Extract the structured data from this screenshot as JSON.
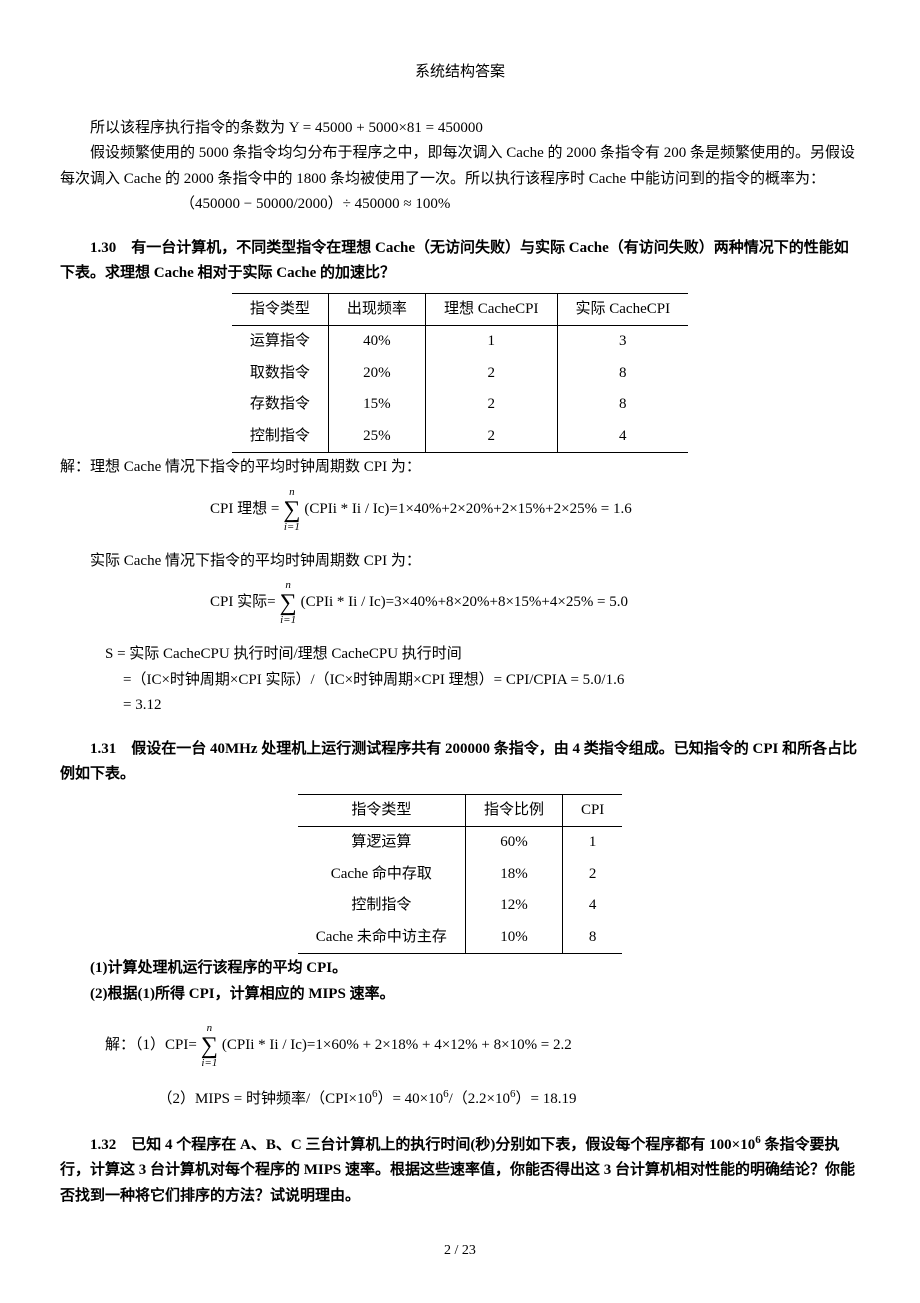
{
  "doc_title": "系统结构答案",
  "intro": {
    "line1": "所以该程序执行指令的条数为 Y = 45000 + 5000×81 = 450000",
    "line2": "假设频繁使用的 5000 条指令均匀分布于程序之中，即每次调入 Cache 的 2000 条指令有 200 条是频繁使用的。另假设每次调入 Cache 的 2000 条指令中的 1800 条均被使用了一次。所以执行该程序时 Cache 中能访问到的指令的概率为：",
    "line3": "（450000 − 50000/2000）÷ 450000 ≈ 100%"
  },
  "q130": {
    "question": "1.30　有一台计算机，不同类型指令在理想 Cache（无访问失败）与实际 Cache（有访问失败）两种情况下的性能如下表。求理想 Cache 相对于实际 Cache 的加速比？",
    "table": {
      "headers": [
        "指令类型",
        "出现频率",
        "理想 CacheCPI",
        "实际 CacheCPI"
      ],
      "rows": [
        [
          "运算指令",
          "40%",
          "1",
          "3"
        ],
        [
          "取数指令",
          "20%",
          "2",
          "8"
        ],
        [
          "存数指令",
          "15%",
          "2",
          "8"
        ],
        [
          "控制指令",
          "25%",
          "2",
          "4"
        ]
      ]
    },
    "sol_intro": "解：理想 Cache 情况下指令的平均时钟周期数 CPI 为：",
    "f1_pre": "CPI 理想 = ",
    "f1_sum_top": "n",
    "f1_sum_bot": "i=1",
    "f1_rest": "(CPIi * Ii / Ic)=1×40%+2×20%+2×15%+2×25% = 1.6",
    "sol_mid": "实际 Cache 情况下指令的平均时钟周期数 CPI 为：",
    "f2_pre": "CPI 实际= ",
    "f2_rest": "(CPIi * Ii / Ic)=3×40%+8×20%+8×15%+4×25% = 5.0",
    "s_line1": "S = 实际 CacheCPU 执行时间/理想 CacheCPU 执行时间",
    "s_line2": "=（IC×时钟周期×CPI 实际）/（IC×时钟周期×CPI 理想）= CPI/CPIA = 5.0/1.6",
    "s_line3": "= 3.12"
  },
  "q131": {
    "question": "1.31　假设在一台 40MHz 处理机上运行测试程序共有 200000 条指令，由 4 类指令组成。已知指令的 CPI 和所各占比例如下表。",
    "table": {
      "headers": [
        "指令类型",
        "指令比例",
        "CPI"
      ],
      "rows": [
        [
          "算逻运算",
          "60%",
          "1"
        ],
        [
          "Cache 命中存取",
          "18%",
          "2"
        ],
        [
          "控制指令",
          "12%",
          "4"
        ],
        [
          "Cache 未命中访主存",
          "10%",
          "8"
        ]
      ]
    },
    "sub1": "(1)计算处理机运行该程序的平均 CPI。",
    "sub2": "(2)根据(1)所得 CPI，计算相应的 MIPS 速率。",
    "sol_pre": "解：（1）CPI= ",
    "f3_rest": "(CPIi * Ii / Ic)=1×60% + 2×18% + 4×12% + 8×10% = 2.2",
    "sol2_pre": "（2）MIPS = 时钟频率/（CPI×10",
    "sol2_sup1": "6",
    "sol2_mid": "）= 40×10",
    "sol2_sup2": "6",
    "sol2_mid2": "/（2.2×10",
    "sol2_sup3": "6",
    "sol2_end": "）= 18.19"
  },
  "q132": {
    "question_p1": "1.32　已知 4 个程序在 A、B、C 三台计算机上的执行时间(秒)分别如下表，假设每个程序都有 100×10",
    "question_sup": "6",
    "question_p2": "条指令要执行，计算这 3 台计算机对每个程序的 MIPS 速率。根据这些速率值，你能否得出这 3 台计算机相对性能的明确结论？你能否找到一种将它们排序的方法？试说明理由。"
  },
  "pagenum": "2 / 23"
}
